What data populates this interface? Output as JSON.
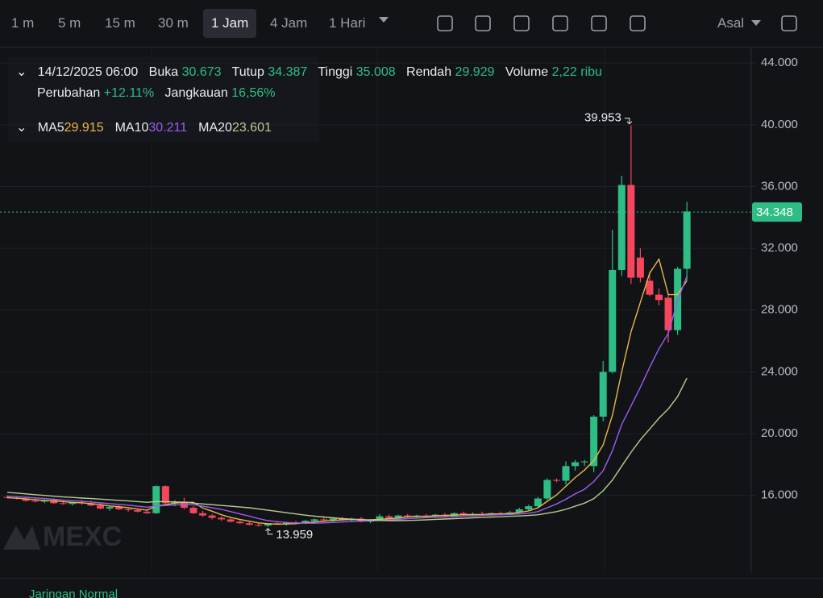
{
  "toolbar": {
    "intervals": [
      "1 m",
      "5 m",
      "15 m",
      "30 m",
      "1 Jam",
      "4 Jam",
      "1 Hari"
    ],
    "active": "1 Jam",
    "scale": "Asal"
  },
  "legend": {
    "datetime": "14/12/2025 06:00",
    "open_label": "Buka",
    "close_label": "Tutup",
    "high_label": "Tinggi",
    "low_label": "Rendah",
    "volume_label": "Volume",
    "volume": "2,22 ribu",
    "change_label": "Perubahan",
    "change": "+12.11%",
    "range_label": "Jangkauan",
    "range": "16,56%"
  },
  "status": "Jaringan Normal",
  "watermark": "MEXC",
  "chart_data": {
    "type": "candlestick",
    "up_color": "#2ebd85",
    "down_color": "#f6465d",
    "open": [
      15.9,
      15.85,
      15.8,
      15.65,
      15.6,
      15.7,
      15.5,
      15.45,
      15.55,
      15.5,
      15.35,
      15.15,
      15.25,
      15.1,
      15.05,
      14.95,
      14.85,
      16.6,
      15.5,
      15.6,
      15.2,
      14.85,
      14.7,
      14.55,
      14.45,
      14.3,
      14.2,
      14.1,
      14.05,
      14.2,
      14.15,
      14.25,
      14.2,
      14.35,
      14.45,
      14.4,
      14.5,
      14.4,
      14.5,
      14.3,
      14.4,
      14.65,
      14.55,
      14.7,
      14.6,
      14.7,
      14.65,
      14.75,
      14.65,
      14.85,
      14.75,
      14.8,
      14.75,
      14.85,
      14.8,
      14.9,
      15.1,
      15.3,
      15.8,
      17.0,
      16.95,
      17.9,
      18.15,
      17.9,
      21.1,
      24.0,
      30.6,
      36.1,
      31.4,
      29.9,
      29.0,
      28.8,
      26.7,
      30.673
    ],
    "high": [
      16.0,
      15.95,
      15.9,
      15.8,
      15.75,
      15.8,
      15.65,
      15.6,
      15.7,
      15.65,
      15.5,
      15.3,
      15.35,
      15.2,
      15.15,
      15.05,
      16.65,
      16.65,
      15.7,
      15.85,
      15.3,
      15.0,
      14.8,
      14.65,
      14.55,
      14.4,
      14.3,
      14.2,
      14.15,
      14.3,
      14.3,
      14.35,
      14.4,
      14.5,
      14.6,
      14.55,
      14.6,
      14.55,
      14.6,
      14.45,
      14.8,
      14.75,
      14.75,
      14.8,
      14.75,
      14.8,
      14.8,
      14.85,
      14.9,
      14.95,
      14.9,
      14.95,
      14.9,
      14.95,
      15.0,
      15.2,
      15.4,
      15.9,
      17.1,
      17.1,
      18.2,
      18.3,
      18.3,
      21.2,
      24.7,
      33.2,
      36.7,
      39.953,
      32.0,
      30.5,
      29.4,
      29.0,
      30.8,
      35.008
    ],
    "low": [
      15.8,
      15.75,
      15.6,
      15.55,
      15.5,
      15.45,
      15.4,
      15.35,
      15.4,
      15.3,
      15.1,
      15.0,
      15.05,
      14.95,
      14.9,
      14.8,
      14.8,
      15.4,
      15.3,
      15.1,
      14.8,
      14.6,
      14.45,
      14.35,
      14.25,
      14.15,
      14.05,
      13.98,
      13.959,
      14.1,
      14.05,
      14.15,
      14.15,
      14.3,
      14.35,
      14.3,
      14.35,
      14.3,
      14.25,
      14.2,
      14.35,
      14.45,
      14.5,
      14.55,
      14.55,
      14.6,
      14.55,
      14.6,
      14.6,
      14.7,
      14.65,
      14.7,
      14.7,
      14.7,
      14.75,
      14.85,
      15.0,
      15.2,
      15.7,
      16.85,
      16.7,
      17.6,
      17.9,
      17.5,
      20.8,
      23.9,
      30.2,
      29.7,
      29.8,
      28.9,
      28.3,
      25.9,
      26.4,
      29.929
    ],
    "close": [
      15.85,
      15.8,
      15.65,
      15.6,
      15.7,
      15.5,
      15.45,
      15.55,
      15.5,
      15.35,
      15.15,
      15.25,
      15.1,
      15.05,
      14.95,
      14.85,
      16.6,
      15.5,
      15.6,
      15.2,
      14.85,
      14.7,
      14.55,
      14.45,
      14.3,
      14.2,
      14.1,
      14.05,
      14.2,
      14.15,
      14.25,
      14.2,
      14.35,
      14.45,
      14.4,
      14.5,
      14.4,
      14.5,
      14.3,
      14.4,
      14.65,
      14.55,
      14.7,
      14.6,
      14.7,
      14.65,
      14.75,
      14.65,
      14.85,
      14.75,
      14.8,
      14.75,
      14.85,
      14.8,
      14.9,
      15.1,
      15.3,
      15.8,
      17.0,
      16.95,
      17.9,
      18.15,
      18.2,
      21.1,
      24.0,
      30.6,
      36.1,
      30.1,
      30.1,
      29.0,
      28.65,
      26.7,
      30.673,
      34.387
    ],
    "series": [
      {
        "name": "MA5",
        "color": "#e8b84a",
        "values": [
          15.85,
          15.82,
          15.78,
          15.72,
          15.68,
          15.65,
          15.6,
          15.55,
          15.52,
          15.47,
          15.4,
          15.32,
          15.27,
          15.2,
          15.12,
          15.05,
          15.3,
          15.4,
          15.5,
          15.55,
          15.55,
          15.18,
          14.98,
          14.75,
          14.57,
          14.44,
          14.33,
          14.22,
          14.17,
          14.14,
          14.15,
          14.17,
          14.23,
          14.28,
          14.33,
          14.38,
          14.42,
          14.45,
          14.42,
          14.42,
          14.45,
          14.5,
          14.53,
          14.62,
          14.64,
          14.64,
          14.68,
          14.7,
          14.73,
          14.75,
          14.76,
          14.77,
          14.8,
          14.8,
          14.82,
          14.9,
          15.0,
          15.2,
          15.62,
          16.03,
          16.59,
          17.16,
          17.64,
          18.26,
          19.27,
          21.2,
          24.0,
          26.6,
          28.5,
          30.4,
          31.3,
          29.0,
          29.0,
          29.915
        ]
      },
      {
        "name": "MA10",
        "color": "#9d5cf2",
        "values": [
          15.95,
          15.92,
          15.88,
          15.84,
          15.8,
          15.75,
          15.7,
          15.66,
          15.62,
          15.58,
          15.52,
          15.47,
          15.42,
          15.37,
          15.3,
          15.24,
          15.3,
          15.35,
          15.38,
          15.4,
          15.4,
          15.3,
          15.2,
          15.1,
          14.95,
          14.8,
          14.66,
          14.5,
          14.37,
          14.3,
          14.25,
          14.22,
          14.2,
          14.2,
          14.22,
          14.25,
          14.28,
          14.31,
          14.33,
          14.35,
          14.38,
          14.42,
          14.45,
          14.5,
          14.53,
          14.56,
          14.58,
          14.6,
          14.63,
          14.66,
          14.68,
          14.7,
          14.73,
          14.75,
          14.77,
          14.8,
          14.85,
          14.95,
          15.2,
          15.45,
          15.75,
          16.1,
          16.4,
          16.9,
          17.6,
          18.9,
          20.6,
          21.8,
          23.0,
          24.3,
          25.5,
          26.5,
          28.6,
          30.211
        ]
      },
      {
        "name": "MA20",
        "color": "#b5cf8e",
        "values": [
          16.2,
          16.15,
          16.1,
          16.05,
          16.0,
          15.95,
          15.9,
          15.87,
          15.83,
          15.8,
          15.76,
          15.72,
          15.68,
          15.64,
          15.6,
          15.56,
          15.6,
          15.6,
          15.58,
          15.56,
          15.5,
          15.45,
          15.4,
          15.35,
          15.3,
          15.25,
          15.2,
          15.12,
          15.04,
          14.96,
          14.88,
          14.8,
          14.72,
          14.66,
          14.6,
          14.55,
          14.5,
          14.46,
          14.43,
          14.4,
          14.38,
          14.37,
          14.37,
          14.38,
          14.4,
          14.42,
          14.45,
          14.47,
          14.5,
          14.52,
          14.55,
          14.58,
          14.6,
          14.62,
          14.65,
          14.67,
          14.7,
          14.75,
          14.85,
          14.95,
          15.1,
          15.3,
          15.5,
          15.8,
          16.3,
          17.0,
          17.9,
          18.8,
          19.6,
          20.3,
          21.0,
          21.6,
          22.4,
          23.601
        ]
      }
    ],
    "last_price": 34.348,
    "ylim": [
      11.08,
      45.0
    ],
    "yticks": [
      {
        "value": 16,
        "label": "16.000"
      },
      {
        "value": 20,
        "label": "20.000"
      },
      {
        "value": 24,
        "label": "24.000"
      },
      {
        "value": 28,
        "label": "28.000"
      },
      {
        "value": 32,
        "label": "32.000"
      },
      {
        "value": 36,
        "label": "36.000"
      },
      {
        "value": 40,
        "label": "40.000"
      },
      {
        "value": 44,
        "label": "44.000"
      }
    ],
    "grid": true,
    "high_marker": 67,
    "low_marker": 28
  }
}
